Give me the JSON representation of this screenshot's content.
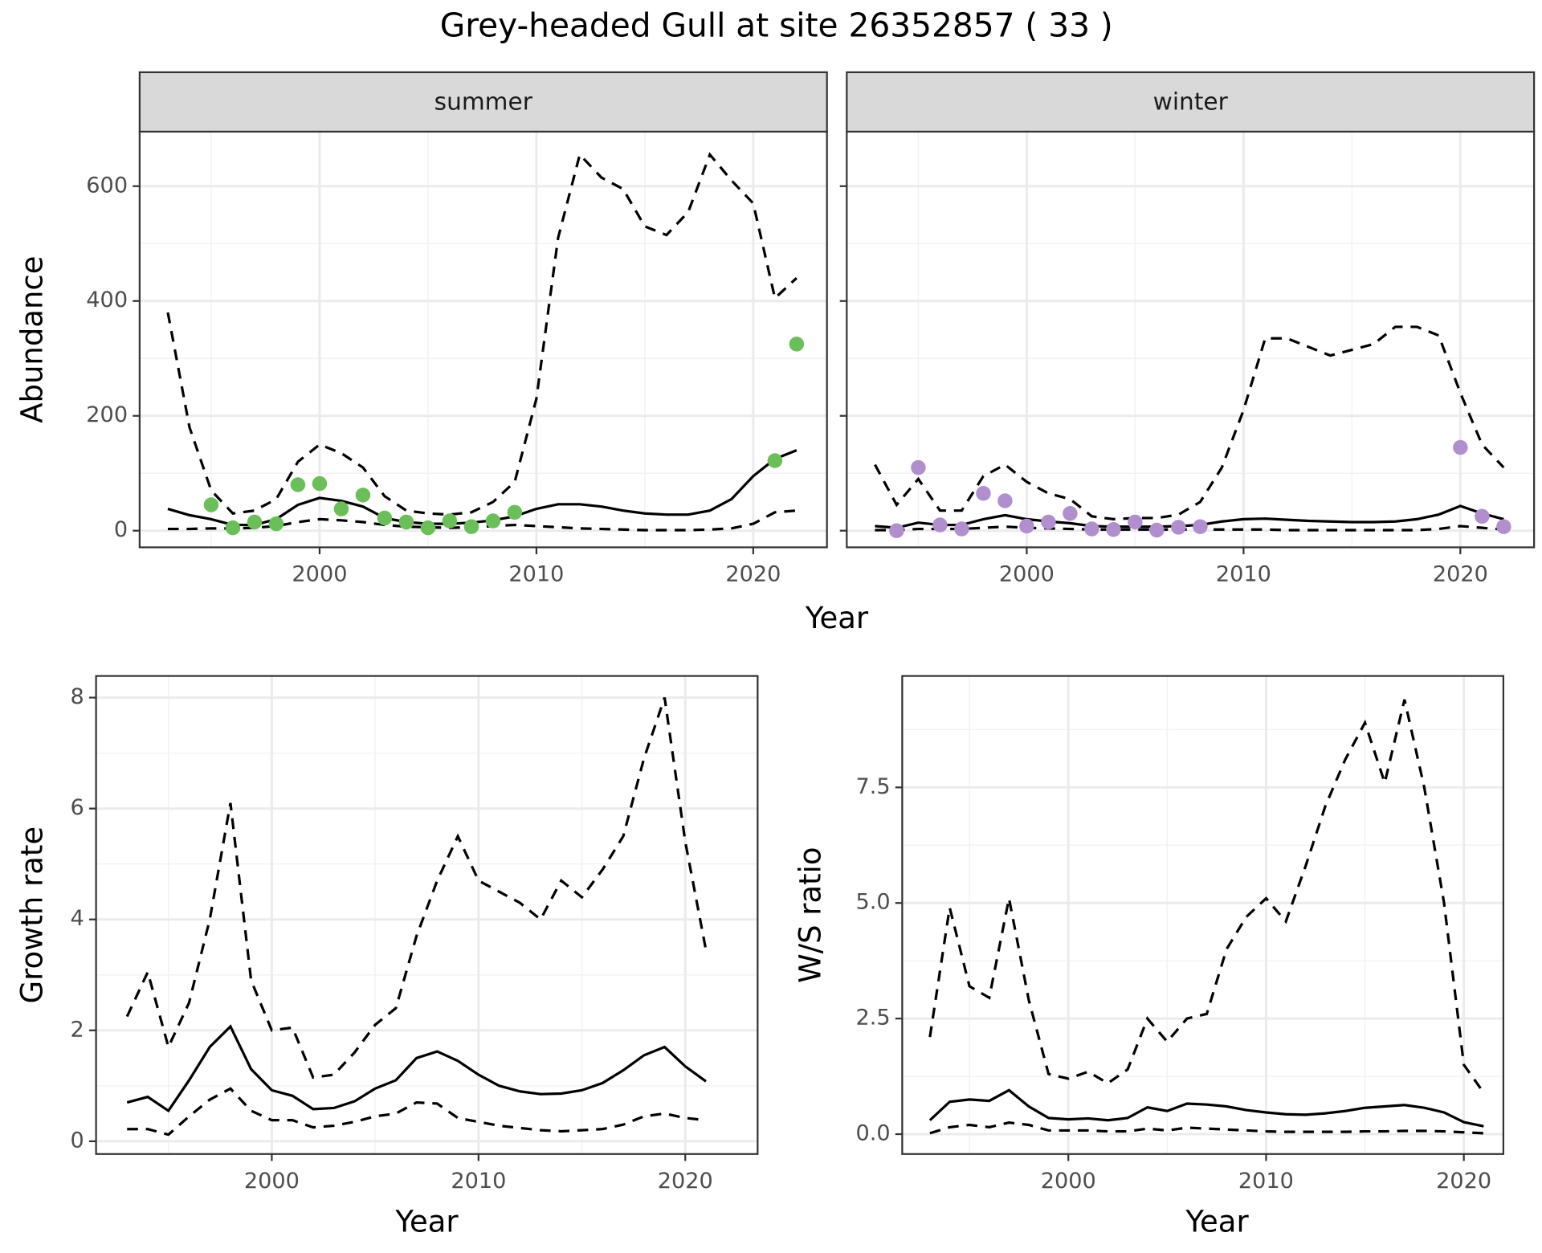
{
  "title": "Grey-headed Gull at site 26352857 ( 33 )",
  "chart_data": [
    {
      "type": "line",
      "title": "summer",
      "xlabel": "Year",
      "ylabel": "Abundance",
      "xlim": [
        1991.7,
        2023.4
      ],
      "xticks": [
        2000,
        2010,
        2020
      ],
      "ylim": [
        -29,
        695
      ],
      "yticks": [
        0,
        200,
        400,
        600
      ],
      "grid": true,
      "series": [
        {
          "color": "#000000",
          "linestyle": "dashed",
          "x": [
            1993,
            1994,
            1995,
            1996,
            1997,
            1998,
            1999,
            2000,
            2001,
            2002,
            2003,
            2004,
            2005,
            2006,
            2007,
            2008,
            2009,
            2010,
            2011,
            2012,
            2013,
            2014,
            2015,
            2016,
            2017,
            2018,
            2019,
            2020,
            2021,
            2022
          ],
          "values": [
            380,
            180,
            70,
            30,
            35,
            55,
            120,
            150,
            135,
            110,
            60,
            35,
            30,
            28,
            32,
            50,
            85,
            230,
            510,
            655,
            615,
            595,
            530,
            515,
            555,
            655,
            610,
            570,
            405,
            440
          ]
        },
        {
          "color": "#000000",
          "linestyle": "solid",
          "x": [
            1993,
            1994,
            1995,
            1996,
            1997,
            1998,
            1999,
            2000,
            2001,
            2002,
            2003,
            2004,
            2005,
            2006,
            2007,
            2008,
            2009,
            2010,
            2011,
            2012,
            2013,
            2014,
            2015,
            2016,
            2017,
            2018,
            2019,
            2020,
            2021,
            2022
          ],
          "values": [
            38,
            27,
            20,
            10,
            10,
            20,
            45,
            57,
            52,
            42,
            22,
            15,
            12,
            12,
            14,
            18,
            25,
            38,
            46,
            46,
            42,
            35,
            30,
            28,
            28,
            35,
            55,
            95,
            125,
            140
          ]
        },
        {
          "color": "#000000",
          "linestyle": "dashed",
          "x": [
            1993,
            1994,
            1995,
            1996,
            1997,
            1998,
            1999,
            2000,
            2001,
            2002,
            2003,
            2004,
            2005,
            2006,
            2007,
            2008,
            2009,
            2010,
            2011,
            2012,
            2013,
            2014,
            2015,
            2016,
            2017,
            2018,
            2019,
            2020,
            2021,
            2022
          ],
          "values": [
            3,
            3,
            4,
            4,
            5,
            8,
            15,
            20,
            18,
            15,
            10,
            7,
            6,
            5,
            6,
            8,
            10,
            8,
            6,
            4,
            3,
            2,
            1,
            1,
            1,
            2,
            4,
            12,
            32,
            35
          ]
        },
        {
          "color": "#6abf59",
          "marker": "circle",
          "x": [
            1995,
            1996,
            1997,
            1998,
            1999,
            2000,
            2001,
            2002,
            2003,
            2004,
            2005,
            2006,
            2007,
            2008,
            2009,
            2021,
            2022
          ],
          "values": [
            45,
            5,
            15,
            12,
            80,
            82,
            38,
            62,
            22,
            15,
            5,
            17,
            7,
            17,
            32,
            122,
            325
          ]
        }
      ]
    },
    {
      "type": "line",
      "title": "winter",
      "xlim": [
        1991.7,
        2023.4
      ],
      "xticks": [
        2000,
        2010,
        2020
      ],
      "ylim": [
        -29,
        695
      ],
      "yticks": [
        0,
        200,
        400,
        600
      ],
      "grid": true,
      "series": [
        {
          "color": "#000000",
          "linestyle": "dashed",
          "x": [
            1993,
            1994,
            1995,
            1996,
            1997,
            1998,
            1999,
            2000,
            2001,
            2002,
            2003,
            2004,
            2005,
            2006,
            2007,
            2008,
            2009,
            2010,
            2011,
            2012,
            2013,
            2014,
            2015,
            2016,
            2017,
            2018,
            2019,
            2020,
            2021,
            2022
          ],
          "values": [
            115,
            45,
            90,
            35,
            35,
            95,
            115,
            85,
            65,
            55,
            25,
            20,
            22,
            22,
            28,
            50,
            110,
            210,
            335,
            335,
            320,
            305,
            315,
            325,
            355,
            355,
            340,
            240,
            150,
            110
          ]
        },
        {
          "color": "#000000",
          "linestyle": "solid",
          "x": [
            1993,
            1994,
            1995,
            1996,
            1997,
            1998,
            1999,
            2000,
            2001,
            2002,
            2003,
            2004,
            2005,
            2006,
            2007,
            2008,
            2009,
            2010,
            2011,
            2012,
            2013,
            2014,
            2015,
            2016,
            2017,
            2018,
            2019,
            2020,
            2021,
            2022
          ],
          "values": [
            8,
            5,
            14,
            10,
            10,
            20,
            27,
            20,
            16,
            13,
            8,
            7,
            7,
            7,
            8,
            10,
            16,
            20,
            21,
            19,
            17,
            16,
            15,
            15,
            16,
            20,
            28,
            43,
            30,
            20
          ]
        },
        {
          "color": "#000000",
          "linestyle": "dashed",
          "x": [
            1993,
            1994,
            1995,
            1996,
            1997,
            1998,
            1999,
            2000,
            2001,
            2002,
            2003,
            2004,
            2005,
            2006,
            2007,
            2008,
            2009,
            2010,
            2011,
            2012,
            2013,
            2014,
            2015,
            2016,
            2017,
            2018,
            2019,
            2020,
            2021,
            2022
          ],
          "values": [
            1,
            1,
            3,
            3,
            3,
            5,
            7,
            5,
            4,
            3,
            2,
            2,
            2,
            2,
            2,
            2,
            2,
            2,
            2,
            1,
            1,
            1,
            1,
            1,
            1,
            1,
            3,
            8,
            5,
            2
          ]
        },
        {
          "color": "#b18fcf",
          "marker": "circle",
          "x": [
            1994,
            1995,
            1996,
            1997,
            1998,
            1999,
            2000,
            2001,
            2002,
            2003,
            2004,
            2005,
            2006,
            2007,
            2008,
            2020,
            2021,
            2022
          ],
          "values": [
            0,
            110,
            10,
            3,
            65,
            52,
            8,
            15,
            30,
            3,
            2,
            15,
            1,
            6,
            7,
            145,
            25,
            7
          ]
        }
      ]
    },
    {
      "type": "line",
      "xlabel": "Year",
      "ylabel": "Growth rate",
      "xlim": [
        1991.5,
        2023.5
      ],
      "xticks": [
        2000,
        2010,
        2020
      ],
      "ylim": [
        -0.23,
        8.39
      ],
      "yticks": [
        0,
        2,
        4,
        6,
        8
      ],
      "grid": true,
      "series": [
        {
          "color": "#000000",
          "linestyle": "dashed",
          "x": [
            1993,
            1994,
            1995,
            1996,
            1997,
            1998,
            1999,
            2000,
            2001,
            2002,
            2003,
            2004,
            2005,
            2006,
            2007,
            2008,
            2009,
            2010,
            2011,
            2012,
            2013,
            2014,
            2015,
            2016,
            2017,
            2018,
            2019,
            2020,
            2021
          ],
          "values": [
            2.25,
            3.05,
            1.7,
            2.5,
            4.0,
            6.1,
            2.9,
            2.0,
            2.05,
            1.15,
            1.2,
            1.6,
            2.1,
            2.4,
            3.7,
            4.7,
            5.5,
            4.7,
            4.5,
            4.3,
            4.0,
            4.7,
            4.4,
            4.9,
            5.5,
            6.9,
            8.0,
            5.4,
            3.45
          ]
        },
        {
          "color": "#000000",
          "linestyle": "solid",
          "x": [
            1993,
            1994,
            1995,
            1996,
            1997,
            1998,
            1999,
            2000,
            2001,
            2002,
            2003,
            2004,
            2005,
            2006,
            2007,
            2008,
            2009,
            2010,
            2011,
            2012,
            2013,
            2014,
            2015,
            2016,
            2017,
            2018,
            2019,
            2020,
            2021
          ],
          "values": [
            0.7,
            0.8,
            0.55,
            1.1,
            1.7,
            2.07,
            1.3,
            0.92,
            0.82,
            0.58,
            0.6,
            0.72,
            0.95,
            1.1,
            1.5,
            1.62,
            1.45,
            1.2,
            1.0,
            0.9,
            0.85,
            0.86,
            0.92,
            1.05,
            1.28,
            1.55,
            1.7,
            1.35,
            1.08
          ]
        },
        {
          "color": "#000000",
          "linestyle": "dashed",
          "x": [
            1993,
            1994,
            1995,
            1996,
            1997,
            1998,
            1999,
            2000,
            2001,
            2002,
            2003,
            2004,
            2005,
            2006,
            2007,
            2008,
            2009,
            2010,
            2011,
            2012,
            2013,
            2014,
            2015,
            2016,
            2017,
            2018,
            2019,
            2020,
            2021
          ],
          "values": [
            0.22,
            0.22,
            0.12,
            0.45,
            0.75,
            0.95,
            0.55,
            0.38,
            0.38,
            0.25,
            0.28,
            0.35,
            0.45,
            0.5,
            0.7,
            0.68,
            0.42,
            0.35,
            0.28,
            0.24,
            0.2,
            0.18,
            0.2,
            0.22,
            0.3,
            0.45,
            0.5,
            0.42,
            0.38
          ]
        }
      ]
    },
    {
      "type": "line",
      "xlabel": "Year",
      "ylabel": "W/S ratio",
      "xlim": [
        1991.6,
        2022.0
      ],
      "xticks": [
        2000,
        2010,
        2020
      ],
      "ylim": [
        -0.43,
        9.91
      ],
      "yticks": [
        {
          "value": 0,
          "label": "0.0"
        },
        2.5,
        {
          "value": 5,
          "label": "5.0"
        },
        7.5
      ],
      "grid": true,
      "series": [
        {
          "color": "#000000",
          "linestyle": "dashed",
          "x": [
            1993,
            1994,
            1995,
            1996,
            1997,
            1998,
            1999,
            2000,
            2001,
            2002,
            2003,
            2004,
            2005,
            2006,
            2007,
            2008,
            2009,
            2010,
            2011,
            2012,
            2013,
            2014,
            2015,
            2016,
            2017,
            2018,
            2019,
            2020,
            2021
          ],
          "values": [
            2.1,
            4.9,
            3.2,
            2.95,
            5.1,
            2.9,
            1.3,
            1.2,
            1.35,
            1.1,
            1.4,
            2.5,
            2.0,
            2.5,
            2.6,
            4.0,
            4.7,
            5.1,
            4.6,
            5.8,
            7.1,
            8.1,
            8.9,
            7.6,
            9.4,
            7.5,
            5.0,
            1.5,
            0.9
          ]
        },
        {
          "color": "#000000",
          "linestyle": "solid",
          "x": [
            1993,
            1994,
            1995,
            1996,
            1997,
            1998,
            1999,
            2000,
            2001,
            2002,
            2003,
            2004,
            2005,
            2006,
            2007,
            2008,
            2009,
            2010,
            2011,
            2012,
            2013,
            2014,
            2015,
            2016,
            2017,
            2018,
            2019,
            2020,
            2021
          ],
          "values": [
            0.3,
            0.7,
            0.75,
            0.72,
            0.95,
            0.6,
            0.35,
            0.32,
            0.34,
            0.3,
            0.35,
            0.58,
            0.5,
            0.66,
            0.64,
            0.6,
            0.52,
            0.47,
            0.43,
            0.42,
            0.45,
            0.5,
            0.57,
            0.6,
            0.63,
            0.57,
            0.47,
            0.26,
            0.17
          ]
        },
        {
          "color": "#000000",
          "linestyle": "dashed",
          "x": [
            1993,
            1994,
            1995,
            1996,
            1997,
            1998,
            1999,
            2000,
            2001,
            2002,
            2003,
            2004,
            2005,
            2006,
            2007,
            2008,
            2009,
            2010,
            2011,
            2012,
            2013,
            2014,
            2015,
            2016,
            2017,
            2018,
            2019,
            2020,
            2021
          ],
          "values": [
            0.02,
            0.15,
            0.2,
            0.15,
            0.25,
            0.2,
            0.08,
            0.08,
            0.08,
            0.06,
            0.06,
            0.12,
            0.08,
            0.14,
            0.12,
            0.1,
            0.08,
            0.06,
            0.05,
            0.05,
            0.05,
            0.05,
            0.06,
            0.06,
            0.07,
            0.07,
            0.06,
            0.04,
            0.02
          ]
        }
      ]
    }
  ]
}
